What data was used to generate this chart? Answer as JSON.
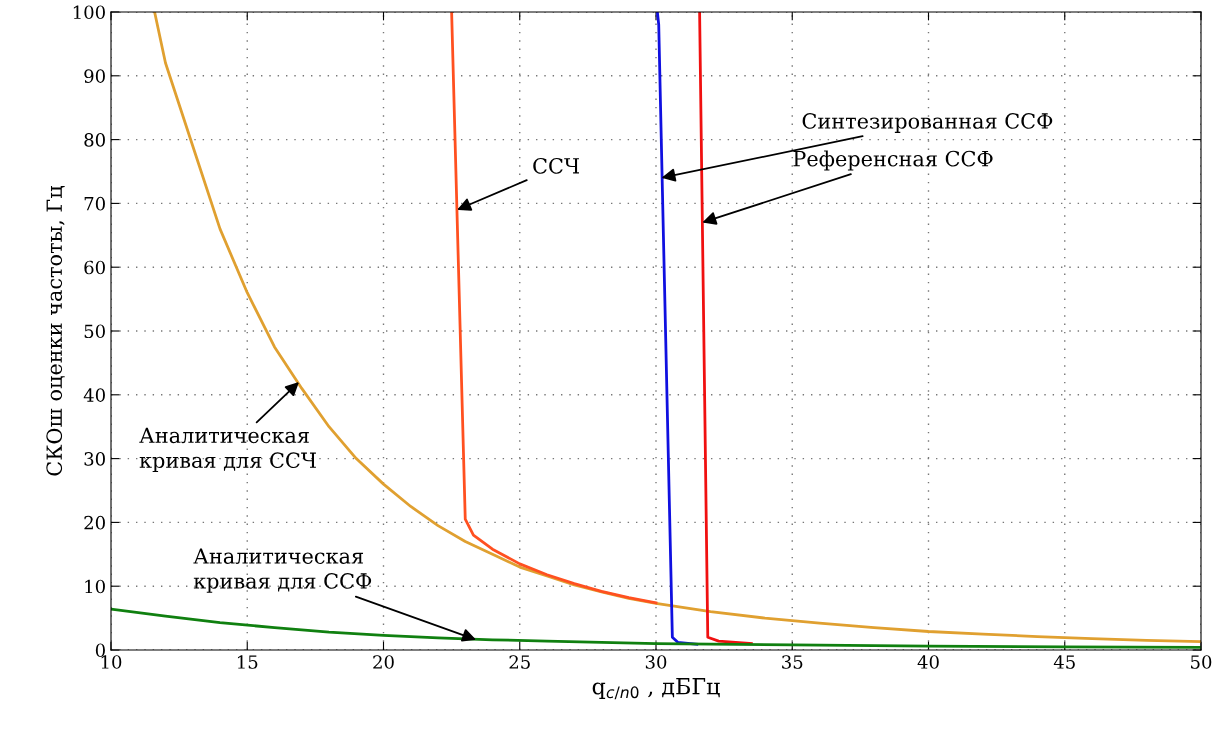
{
  "chart_data": {
    "type": "line",
    "xlabel": "q$_{c/n0}$ , дБГц",
    "ylabel": "СКОш оценки частоты, Гц",
    "xlim": [
      10,
      50
    ],
    "ylim": [
      0,
      100
    ],
    "xticks": [
      10,
      15,
      20,
      25,
      30,
      35,
      40,
      45,
      50
    ],
    "yticks": [
      0,
      10,
      20,
      30,
      40,
      50,
      60,
      70,
      80,
      90,
      100
    ],
    "grid": true,
    "legend": false,
    "marker": "none",
    "line_style": "solid",
    "series": [
      {
        "color": "#e0a030",
        "x": [
          11.6,
          12,
          13,
          14,
          15,
          16,
          17,
          18,
          19,
          20,
          21,
          22,
          23,
          24,
          25,
          26,
          27,
          28,
          29,
          30,
          32,
          34,
          36,
          38,
          40,
          42,
          44,
          46,
          48,
          50
        ],
        "values": [
          100,
          92,
          79,
          66,
          56,
          47.5,
          41,
          35,
          30,
          26,
          22.5,
          19.5,
          17,
          15,
          13,
          11.6,
          10.2,
          9.1,
          8.1,
          7.3,
          6,
          5,
          4.2,
          3.5,
          2.9,
          2.5,
          2.1,
          1.8,
          1.5,
          1.3
        ]
      },
      {
        "color": "#ff5020",
        "x": [
          22.5,
          23.0,
          23.3,
          24,
          25,
          26,
          27,
          28,
          29,
          30
        ],
        "values": [
          100,
          20.5,
          18,
          15.8,
          13.5,
          11.8,
          10.4,
          9.2,
          8.2,
          7.4
        ]
      },
      {
        "color": "#1010e0",
        "x": [
          30.05,
          30.1,
          30.6,
          30.8,
          31.5
        ],
        "values": [
          100,
          98,
          2,
          1.2,
          0.9
        ]
      },
      {
        "color": "#f01010",
        "x": [
          31.6,
          31.9,
          32.3,
          33.5
        ],
        "values": [
          100,
          2,
          1.4,
          1.0
        ]
      },
      {
        "color": "#108010",
        "x": [
          10,
          12,
          14,
          16,
          18,
          20,
          22,
          24,
          26,
          28,
          30,
          35,
          40,
          45,
          50
        ],
        "values": [
          6.4,
          5.3,
          4.3,
          3.5,
          2.8,
          2.3,
          1.9,
          1.6,
          1.4,
          1.2,
          1.0,
          0.8,
          0.6,
          0.5,
          0.4
        ]
      }
    ],
    "annotations": [
      {
        "text": "ССЧ",
        "x": 22.7,
        "y": 69
      },
      {
        "text": "Синтезированная ССФ",
        "x": 30.2,
        "y": 74
      },
      {
        "text": "Референсная ССФ",
        "x": 31.7,
        "y": 67
      },
      {
        "text": "Аналитическая\nкривая для ССЧ",
        "x": 16.9,
        "y": 42
      },
      {
        "text": "Аналитическая\nкривая для ССФ",
        "x": 23.4,
        "y": 1.6
      }
    ]
  }
}
